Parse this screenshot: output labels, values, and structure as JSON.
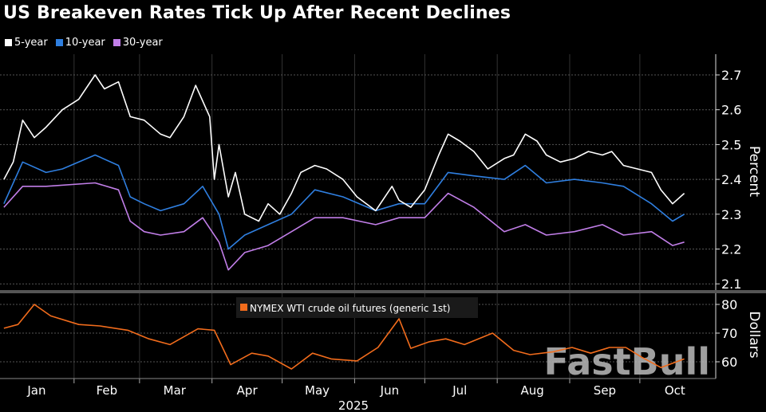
{
  "title": "US Breakeven Rates Tick Up After Recent Declines",
  "watermark": "FastBull",
  "chart_data": [
    {
      "type": "line",
      "ylabel": "Percent",
      "ylim": [
        2.08,
        2.76
      ],
      "yticks": [
        "2.1",
        "2.2",
        "2.3",
        "2.4",
        "2.5",
        "2.6",
        "2.7"
      ],
      "grid": true,
      "legend": "top-left",
      "series": [
        {
          "name": "5-year",
          "color": "#ffffff",
          "x": [
            "2025-01-02",
            "2025-01-06",
            "2025-01-10",
            "2025-01-15",
            "2025-01-20",
            "2025-01-27",
            "2025-02-03",
            "2025-02-10",
            "2025-02-14",
            "2025-02-20",
            "2025-02-25",
            "2025-03-03",
            "2025-03-10",
            "2025-03-14",
            "2025-03-20",
            "2025-03-25",
            "2025-03-31",
            "2025-04-02",
            "2025-04-04",
            "2025-04-08",
            "2025-04-11",
            "2025-04-15",
            "2025-04-21",
            "2025-04-25",
            "2025-04-30",
            "2025-05-05",
            "2025-05-09",
            "2025-05-15",
            "2025-05-20",
            "2025-05-27",
            "2025-06-02",
            "2025-06-10",
            "2025-06-17",
            "2025-06-20",
            "2025-06-25",
            "2025-07-01",
            "2025-07-07",
            "2025-07-11",
            "2025-07-16",
            "2025-07-22",
            "2025-07-28",
            "2025-08-04",
            "2025-08-08",
            "2025-08-13",
            "2025-08-18",
            "2025-08-22",
            "2025-08-28",
            "2025-09-03",
            "2025-09-09",
            "2025-09-15",
            "2025-09-19",
            "2025-09-24",
            "2025-09-30",
            "2025-10-06",
            "2025-10-10",
            "2025-10-15",
            "2025-10-20"
          ],
          "values": [
            2.4,
            2.45,
            2.57,
            2.52,
            2.55,
            2.6,
            2.63,
            2.7,
            2.66,
            2.68,
            2.58,
            2.57,
            2.53,
            2.52,
            2.58,
            2.67,
            2.58,
            2.4,
            2.5,
            2.35,
            2.42,
            2.3,
            2.28,
            2.33,
            2.3,
            2.36,
            2.42,
            2.44,
            2.43,
            2.4,
            2.35,
            2.31,
            2.38,
            2.34,
            2.32,
            2.37,
            2.47,
            2.53,
            2.51,
            2.48,
            2.43,
            2.46,
            2.47,
            2.53,
            2.51,
            2.47,
            2.45,
            2.46,
            2.48,
            2.47,
            2.48,
            2.44,
            2.43,
            2.42,
            2.37,
            2.33,
            2.36
          ]
        },
        {
          "name": "10-year",
          "color": "#2f7fe0",
          "x": [
            "2025-01-02",
            "2025-01-10",
            "2025-01-20",
            "2025-01-27",
            "2025-02-10",
            "2025-02-20",
            "2025-02-25",
            "2025-03-03",
            "2025-03-10",
            "2025-03-20",
            "2025-03-28",
            "2025-04-04",
            "2025-04-08",
            "2025-04-15",
            "2025-04-25",
            "2025-05-05",
            "2025-05-15",
            "2025-05-27",
            "2025-06-10",
            "2025-06-20",
            "2025-07-01",
            "2025-07-11",
            "2025-07-22",
            "2025-08-04",
            "2025-08-13",
            "2025-08-22",
            "2025-09-03",
            "2025-09-15",
            "2025-09-24",
            "2025-10-06",
            "2025-10-15",
            "2025-10-20"
          ],
          "values": [
            2.33,
            2.45,
            2.42,
            2.43,
            2.47,
            2.44,
            2.35,
            2.33,
            2.31,
            2.33,
            2.38,
            2.3,
            2.2,
            2.24,
            2.27,
            2.3,
            2.37,
            2.35,
            2.31,
            2.33,
            2.33,
            2.42,
            2.41,
            2.4,
            2.44,
            2.39,
            2.4,
            2.39,
            2.38,
            2.33,
            2.28,
            2.3
          ]
        },
        {
          "name": "30-year",
          "color": "#c17ee8",
          "x": [
            "2025-01-02",
            "2025-01-10",
            "2025-01-20",
            "2025-02-10",
            "2025-02-20",
            "2025-02-25",
            "2025-03-03",
            "2025-03-10",
            "2025-03-20",
            "2025-03-28",
            "2025-04-04",
            "2025-04-08",
            "2025-04-15",
            "2025-04-25",
            "2025-05-05",
            "2025-05-15",
            "2025-05-27",
            "2025-06-10",
            "2025-06-20",
            "2025-07-01",
            "2025-07-11",
            "2025-07-22",
            "2025-08-04",
            "2025-08-13",
            "2025-08-22",
            "2025-09-03",
            "2025-09-15",
            "2025-09-24",
            "2025-10-06",
            "2025-10-15",
            "2025-10-20"
          ],
          "values": [
            2.32,
            2.38,
            2.38,
            2.39,
            2.37,
            2.28,
            2.25,
            2.24,
            2.25,
            2.29,
            2.22,
            2.14,
            2.19,
            2.21,
            2.25,
            2.29,
            2.29,
            2.27,
            2.29,
            2.29,
            2.36,
            2.32,
            2.25,
            2.27,
            2.24,
            2.25,
            2.27,
            2.24,
            2.25,
            2.21,
            2.22
          ]
        }
      ]
    },
    {
      "type": "line",
      "ylabel": "Dollars",
      "ylim": [
        57,
        81
      ],
      "yticks": [
        "60",
        "70",
        "80"
      ],
      "grid": true,
      "legend": "top-center",
      "series": [
        {
          "name": "NYMEX WTI crude oil futures (generic 1st)",
          "color": "#f26c1c",
          "x": [
            "2025-01-02",
            "2025-01-08",
            "2025-01-15",
            "2025-01-22",
            "2025-02-03",
            "2025-02-12",
            "2025-02-24",
            "2025-03-05",
            "2025-03-14",
            "2025-03-26",
            "2025-04-02",
            "2025-04-09",
            "2025-04-18",
            "2025-04-25",
            "2025-05-05",
            "2025-05-14",
            "2025-05-22",
            "2025-06-02",
            "2025-06-11",
            "2025-06-20",
            "2025-06-25",
            "2025-07-03",
            "2025-07-10",
            "2025-07-18",
            "2025-07-30",
            "2025-08-08",
            "2025-08-15",
            "2025-08-25",
            "2025-09-02",
            "2025-09-10",
            "2025-09-18",
            "2025-09-25",
            "2025-10-02",
            "2025-10-10",
            "2025-10-20"
          ],
          "values": [
            71.7,
            73,
            80,
            76,
            73,
            72.5,
            71,
            68,
            66,
            71.5,
            71,
            59,
            63,
            62,
            57.5,
            63,
            61,
            60.3,
            65,
            75,
            64.7,
            67,
            68,
            66,
            70,
            64,
            62.5,
            63.5,
            65,
            63,
            65,
            65,
            61.5,
            58,
            61
          ]
        }
      ]
    }
  ],
  "x_axis": {
    "months": [
      "Jan",
      "Feb",
      "Mar",
      "Apr",
      "May",
      "Jun",
      "Jul",
      "Aug",
      "Sep",
      "Oct"
    ],
    "year": "2025"
  }
}
